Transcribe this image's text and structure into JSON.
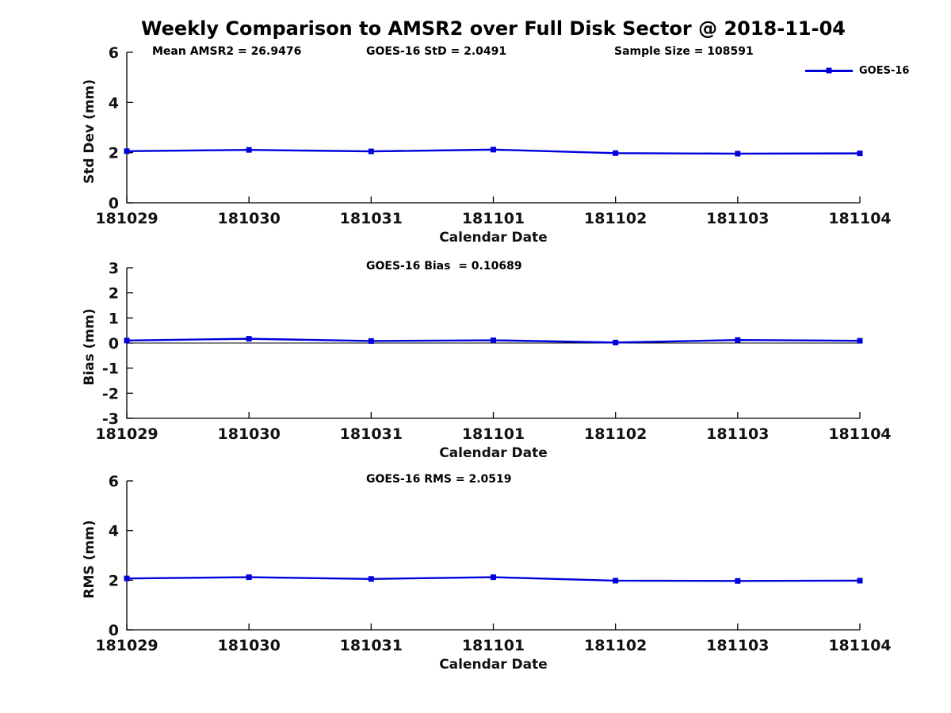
{
  "title": "Weekly Comparison to AMSR2 over Full Disk Sector @ 2018-11-04",
  "legend": {
    "label": "GOES-16",
    "color": "#0000dd"
  },
  "annotations": {
    "mean_amsr2": "Mean AMSR2 = 26.9476",
    "goes16_std": "GOES-16 StD = 2.0491",
    "sample_size": "Sample Size = 108591",
    "goes16_bias": "GOES-16 Bias  = 0.10689",
    "goes16_rms": "GOES-16 RMS = 2.0519"
  },
  "chart_data": [
    {
      "id": "std-dev",
      "type": "line",
      "title": "",
      "xlabel": "Calendar Date",
      "ylabel": "Std Dev (mm)",
      "categories": [
        "181029",
        "181030",
        "181031",
        "181101",
        "181102",
        "181103",
        "181104"
      ],
      "series": [
        {
          "name": "GOES-16",
          "color": "#0000dd",
          "marker": "square",
          "values": [
            2.06,
            2.11,
            2.05,
            2.12,
            1.98,
            1.96,
            1.97
          ]
        }
      ],
      "ylim": [
        0,
        6
      ],
      "yticks": [
        0,
        2,
        4,
        6
      ],
      "grid": false,
      "zero_line": false,
      "legend_position": "top-right",
      "annotations": [
        "Mean AMSR2 = 26.9476",
        "GOES-16 StD = 2.0491",
        "Sample Size = 108591"
      ]
    },
    {
      "id": "bias",
      "type": "line",
      "title": "GOES-16 Bias  = 0.10689",
      "xlabel": "Calendar Date",
      "ylabel": "Bias (mm)",
      "categories": [
        "181029",
        "181030",
        "181031",
        "181101",
        "181102",
        "181103",
        "181104"
      ],
      "series": [
        {
          "name": "GOES-16",
          "color": "#0000dd",
          "marker": "square",
          "values": [
            0.1,
            0.17,
            0.08,
            0.11,
            0.02,
            0.12,
            0.09
          ]
        }
      ],
      "ylim": [
        -3,
        3
      ],
      "yticks": [
        -3,
        -2,
        -1,
        0,
        1,
        2,
        3
      ],
      "grid": false,
      "zero_line": true,
      "legend_position": "none",
      "annotations": [
        "GOES-16 Bias  = 0.10689"
      ]
    },
    {
      "id": "rms",
      "type": "line",
      "title": "GOES-16 RMS = 2.0519",
      "xlabel": "Calendar Date",
      "ylabel": "RMS (mm)",
      "categories": [
        "181029",
        "181030",
        "181031",
        "181101",
        "181102",
        "181103",
        "181104"
      ],
      "series": [
        {
          "name": "GOES-16",
          "color": "#0000dd",
          "marker": "square",
          "values": [
            2.07,
            2.12,
            2.05,
            2.12,
            1.98,
            1.97,
            1.98
          ]
        }
      ],
      "ylim": [
        0,
        6
      ],
      "yticks": [
        0,
        2,
        4,
        6
      ],
      "grid": false,
      "zero_line": false,
      "legend_position": "none",
      "annotations": [
        "GOES-16 RMS = 2.0519"
      ]
    }
  ]
}
